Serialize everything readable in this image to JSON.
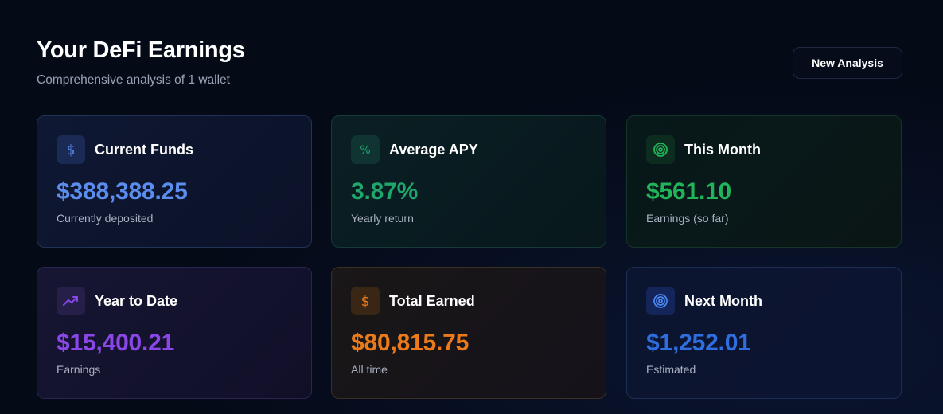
{
  "header": {
    "title": "Your DeFi Earnings",
    "subtitle": "Comprehensive analysis of 1 wallet",
    "new_analysis_label": "New Analysis"
  },
  "cards": [
    {
      "icon": "dollar-icon",
      "title": "Current Funds",
      "value": "$388,388.25",
      "sub": "Currently deposited",
      "color": "#5b8def"
    },
    {
      "icon": "percent-icon",
      "title": "Average APY",
      "value": "3.87%",
      "sub": "Yearly return",
      "color": "#1fa66a"
    },
    {
      "icon": "target-icon",
      "title": "This Month",
      "value": "$561.10",
      "sub": "Earnings (so far)",
      "color": "#22b45a"
    },
    {
      "icon": "trending-up-icon",
      "title": "Year to Date",
      "value": "$15,400.21",
      "sub": "Earnings",
      "color": "#8b46e8"
    },
    {
      "icon": "dollar-icon",
      "title": "Total Earned",
      "value": "$80,815.75",
      "sub": "All time",
      "color": "#ea7a1a"
    },
    {
      "icon": "target-icon",
      "title": "Next Month",
      "value": "$1,252.01",
      "sub": "Estimated",
      "color": "#2f6ee0"
    }
  ]
}
